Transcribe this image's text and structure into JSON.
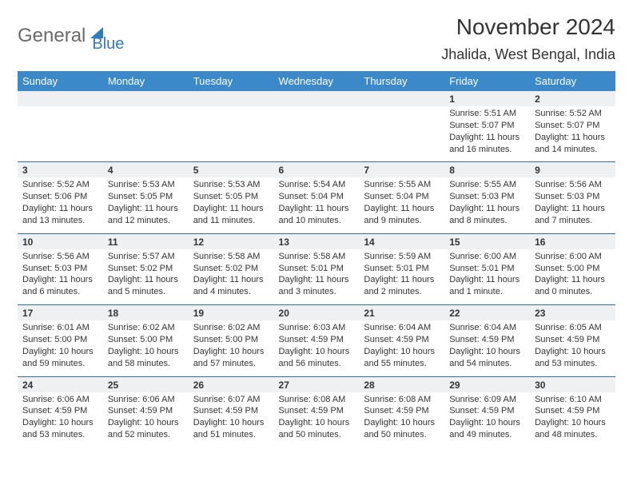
{
  "logo": {
    "text1": "General",
    "text2": "Blue"
  },
  "title": "November 2024",
  "location": "Jhalida, West Bengal, India",
  "colors": {
    "header_bg": "#3b89c9",
    "header_fg": "#ffffff",
    "daynum_bg": "#eef0f2",
    "separator": "#2d6fa8",
    "logo_gray": "#6b6b6b",
    "logo_blue": "#2d7cbf"
  },
  "day_headers": [
    "Sunday",
    "Monday",
    "Tuesday",
    "Wednesday",
    "Thursday",
    "Friday",
    "Saturday"
  ],
  "weeks": [
    [
      {
        "n": "",
        "sr": "",
        "ss": "",
        "dl1": "",
        "dl2": ""
      },
      {
        "n": "",
        "sr": "",
        "ss": "",
        "dl1": "",
        "dl2": ""
      },
      {
        "n": "",
        "sr": "",
        "ss": "",
        "dl1": "",
        "dl2": ""
      },
      {
        "n": "",
        "sr": "",
        "ss": "",
        "dl1": "",
        "dl2": ""
      },
      {
        "n": "",
        "sr": "",
        "ss": "",
        "dl1": "",
        "dl2": ""
      },
      {
        "n": "1",
        "sr": "Sunrise: 5:51 AM",
        "ss": "Sunset: 5:07 PM",
        "dl1": "Daylight: 11 hours",
        "dl2": "and 16 minutes."
      },
      {
        "n": "2",
        "sr": "Sunrise: 5:52 AM",
        "ss": "Sunset: 5:07 PM",
        "dl1": "Daylight: 11 hours",
        "dl2": "and 14 minutes."
      }
    ],
    [
      {
        "n": "3",
        "sr": "Sunrise: 5:52 AM",
        "ss": "Sunset: 5:06 PM",
        "dl1": "Daylight: 11 hours",
        "dl2": "and 13 minutes."
      },
      {
        "n": "4",
        "sr": "Sunrise: 5:53 AM",
        "ss": "Sunset: 5:05 PM",
        "dl1": "Daylight: 11 hours",
        "dl2": "and 12 minutes."
      },
      {
        "n": "5",
        "sr": "Sunrise: 5:53 AM",
        "ss": "Sunset: 5:05 PM",
        "dl1": "Daylight: 11 hours",
        "dl2": "and 11 minutes."
      },
      {
        "n": "6",
        "sr": "Sunrise: 5:54 AM",
        "ss": "Sunset: 5:04 PM",
        "dl1": "Daylight: 11 hours",
        "dl2": "and 10 minutes."
      },
      {
        "n": "7",
        "sr": "Sunrise: 5:55 AM",
        "ss": "Sunset: 5:04 PM",
        "dl1": "Daylight: 11 hours",
        "dl2": "and 9 minutes."
      },
      {
        "n": "8",
        "sr": "Sunrise: 5:55 AM",
        "ss": "Sunset: 5:03 PM",
        "dl1": "Daylight: 11 hours",
        "dl2": "and 8 minutes."
      },
      {
        "n": "9",
        "sr": "Sunrise: 5:56 AM",
        "ss": "Sunset: 5:03 PM",
        "dl1": "Daylight: 11 hours",
        "dl2": "and 7 minutes."
      }
    ],
    [
      {
        "n": "10",
        "sr": "Sunrise: 5:56 AM",
        "ss": "Sunset: 5:03 PM",
        "dl1": "Daylight: 11 hours",
        "dl2": "and 6 minutes."
      },
      {
        "n": "11",
        "sr": "Sunrise: 5:57 AM",
        "ss": "Sunset: 5:02 PM",
        "dl1": "Daylight: 11 hours",
        "dl2": "and 5 minutes."
      },
      {
        "n": "12",
        "sr": "Sunrise: 5:58 AM",
        "ss": "Sunset: 5:02 PM",
        "dl1": "Daylight: 11 hours",
        "dl2": "and 4 minutes."
      },
      {
        "n": "13",
        "sr": "Sunrise: 5:58 AM",
        "ss": "Sunset: 5:01 PM",
        "dl1": "Daylight: 11 hours",
        "dl2": "and 3 minutes."
      },
      {
        "n": "14",
        "sr": "Sunrise: 5:59 AM",
        "ss": "Sunset: 5:01 PM",
        "dl1": "Daylight: 11 hours",
        "dl2": "and 2 minutes."
      },
      {
        "n": "15",
        "sr": "Sunrise: 6:00 AM",
        "ss": "Sunset: 5:01 PM",
        "dl1": "Daylight: 11 hours",
        "dl2": "and 1 minute."
      },
      {
        "n": "16",
        "sr": "Sunrise: 6:00 AM",
        "ss": "Sunset: 5:00 PM",
        "dl1": "Daylight: 11 hours",
        "dl2": "and 0 minutes."
      }
    ],
    [
      {
        "n": "17",
        "sr": "Sunrise: 6:01 AM",
        "ss": "Sunset: 5:00 PM",
        "dl1": "Daylight: 10 hours",
        "dl2": "and 59 minutes."
      },
      {
        "n": "18",
        "sr": "Sunrise: 6:02 AM",
        "ss": "Sunset: 5:00 PM",
        "dl1": "Daylight: 10 hours",
        "dl2": "and 58 minutes."
      },
      {
        "n": "19",
        "sr": "Sunrise: 6:02 AM",
        "ss": "Sunset: 5:00 PM",
        "dl1": "Daylight: 10 hours",
        "dl2": "and 57 minutes."
      },
      {
        "n": "20",
        "sr": "Sunrise: 6:03 AM",
        "ss": "Sunset: 4:59 PM",
        "dl1": "Daylight: 10 hours",
        "dl2": "and 56 minutes."
      },
      {
        "n": "21",
        "sr": "Sunrise: 6:04 AM",
        "ss": "Sunset: 4:59 PM",
        "dl1": "Daylight: 10 hours",
        "dl2": "and 55 minutes."
      },
      {
        "n": "22",
        "sr": "Sunrise: 6:04 AM",
        "ss": "Sunset: 4:59 PM",
        "dl1": "Daylight: 10 hours",
        "dl2": "and 54 minutes."
      },
      {
        "n": "23",
        "sr": "Sunrise: 6:05 AM",
        "ss": "Sunset: 4:59 PM",
        "dl1": "Daylight: 10 hours",
        "dl2": "and 53 minutes."
      }
    ],
    [
      {
        "n": "24",
        "sr": "Sunrise: 6:06 AM",
        "ss": "Sunset: 4:59 PM",
        "dl1": "Daylight: 10 hours",
        "dl2": "and 53 minutes."
      },
      {
        "n": "25",
        "sr": "Sunrise: 6:06 AM",
        "ss": "Sunset: 4:59 PM",
        "dl1": "Daylight: 10 hours",
        "dl2": "and 52 minutes."
      },
      {
        "n": "26",
        "sr": "Sunrise: 6:07 AM",
        "ss": "Sunset: 4:59 PM",
        "dl1": "Daylight: 10 hours",
        "dl2": "and 51 minutes."
      },
      {
        "n": "27",
        "sr": "Sunrise: 6:08 AM",
        "ss": "Sunset: 4:59 PM",
        "dl1": "Daylight: 10 hours",
        "dl2": "and 50 minutes."
      },
      {
        "n": "28",
        "sr": "Sunrise: 6:08 AM",
        "ss": "Sunset: 4:59 PM",
        "dl1": "Daylight: 10 hours",
        "dl2": "and 50 minutes."
      },
      {
        "n": "29",
        "sr": "Sunrise: 6:09 AM",
        "ss": "Sunset: 4:59 PM",
        "dl1": "Daylight: 10 hours",
        "dl2": "and 49 minutes."
      },
      {
        "n": "30",
        "sr": "Sunrise: 6:10 AM",
        "ss": "Sunset: 4:59 PM",
        "dl1": "Daylight: 10 hours",
        "dl2": "and 48 minutes."
      }
    ]
  ]
}
